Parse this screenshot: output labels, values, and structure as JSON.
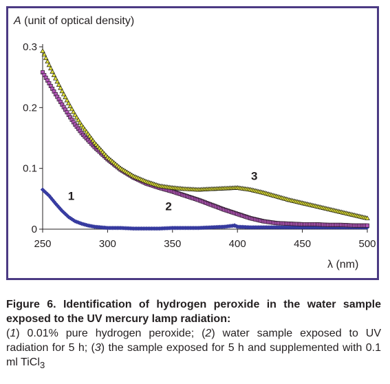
{
  "chart_data": {
    "type": "line",
    "ylabel_symbol": "A",
    "ylabel_rest": "(unit of optical density)",
    "xlabel": "λ (nm)",
    "xlim": [
      250,
      500
    ],
    "ylim": [
      0,
      0.3
    ],
    "x_ticks": [
      250,
      300,
      350,
      400,
      450,
      500
    ],
    "x_tick_labels": [
      "250",
      "300",
      "350",
      "400",
      "450",
      "500"
    ],
    "y_ticks": [
      0,
      0.1,
      0.2,
      0.3
    ],
    "y_tick_labels": [
      "0",
      "0.1",
      "0.2",
      "0.3"
    ],
    "grid": false,
    "legend": "none",
    "series": [
      {
        "label": "1",
        "label_pos": [
          272,
          0.055
        ],
        "color": "#3a3fa6",
        "marker": "diamond",
        "x": [
          250,
          255,
          260,
          265,
          270,
          275,
          280,
          285,
          290,
          295,
          300,
          310,
          320,
          330,
          340,
          350,
          360,
          370,
          380,
          390,
          398,
          400,
          410,
          420,
          430,
          440,
          450,
          460,
          470,
          480,
          490,
          500
        ],
        "y": [
          0.065,
          0.055,
          0.042,
          0.03,
          0.02,
          0.013,
          0.009,
          0.006,
          0.004,
          0.003,
          0.002,
          0.002,
          0.001,
          0.001,
          0.001,
          0.002,
          0.002,
          0.002,
          0.003,
          0.004,
          0.006,
          0.004,
          0.003,
          0.003,
          0.003,
          0.003,
          0.003,
          0.003,
          0.003,
          0.003,
          0.003,
          0.003
        ]
      },
      {
        "label": "2",
        "label_pos": [
          347,
          0.038
        ],
        "color": "#b356b8",
        "marker": "square",
        "x": [
          250,
          255,
          260,
          265,
          270,
          275,
          280,
          290,
          300,
          310,
          320,
          330,
          340,
          350,
          360,
          370,
          380,
          390,
          400,
          410,
          420,
          430,
          440,
          450,
          460,
          470,
          480,
          490,
          500
        ],
        "y": [
          0.258,
          0.24,
          0.222,
          0.205,
          0.188,
          0.172,
          0.158,
          0.135,
          0.115,
          0.098,
          0.085,
          0.075,
          0.068,
          0.062,
          0.055,
          0.048,
          0.04,
          0.032,
          0.025,
          0.018,
          0.013,
          0.01,
          0.009,
          0.008,
          0.008,
          0.007,
          0.007,
          0.006,
          0.006
        ]
      },
      {
        "label": "3",
        "label_pos": [
          413,
          0.088
        ],
        "color": "#e2e23a",
        "marker": "triangle",
        "x": [
          250,
          255,
          260,
          265,
          270,
          275,
          280,
          290,
          300,
          310,
          320,
          330,
          340,
          350,
          360,
          370,
          380,
          390,
          400,
          410,
          420,
          430,
          440,
          450,
          460,
          470,
          480,
          490,
          500
        ],
        "y": [
          0.293,
          0.27,
          0.248,
          0.227,
          0.207,
          0.188,
          0.171,
          0.142,
          0.118,
          0.1,
          0.087,
          0.078,
          0.071,
          0.068,
          0.066,
          0.065,
          0.066,
          0.067,
          0.068,
          0.065,
          0.06,
          0.054,
          0.048,
          0.043,
          0.038,
          0.033,
          0.028,
          0.023,
          0.018
        ]
      }
    ]
  },
  "caption": {
    "title": "Figure 6. Identification of hydrogen peroxide in the water sample exposed to the UV mercury lamp radiation:",
    "item1_num": "1",
    "item1_text": " 0.01% pure hydrogen peroxide; (",
    "item2_num": "2",
    "item2_text": " water sample exposed to UV radiation for 5 h; (",
    "item3_num": "3",
    "item3_text": " the sample exposed for 5 h and supplemented with 0.1 ml TiCl",
    "item3_sub": "3"
  }
}
